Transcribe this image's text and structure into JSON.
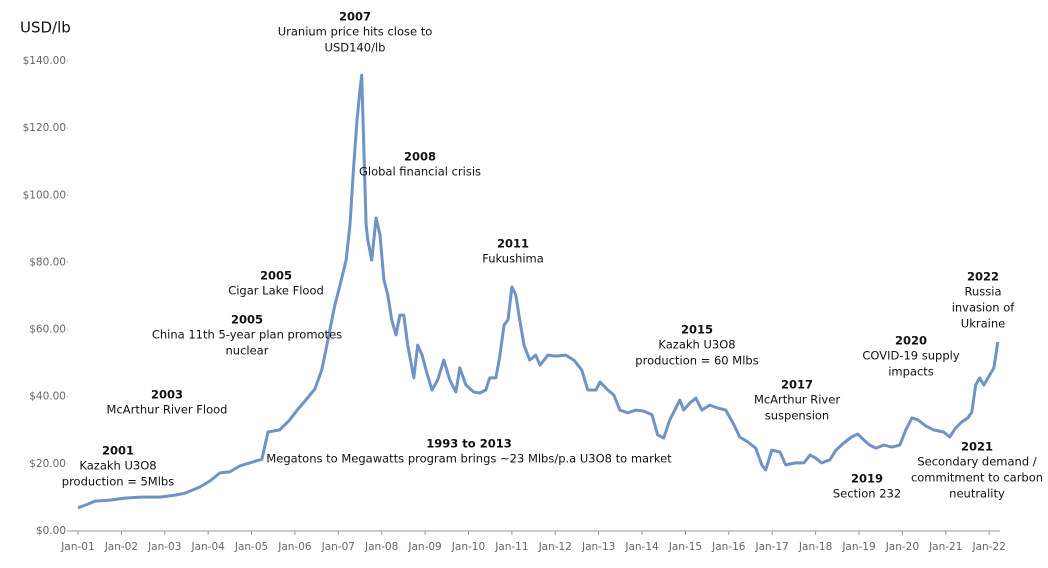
{
  "chart_data": {
    "type": "line",
    "y_label": "USD/lb",
    "color": "#6f93c4",
    "x": [
      2001.0,
      2001.23,
      2001.39,
      2001.74,
      2002.08,
      2002.43,
      2002.89,
      2003.24,
      2003.47,
      2003.81,
      2004.04,
      2004.27,
      2004.5,
      2004.73,
      2004.96,
      2005.24,
      2005.38,
      2005.65,
      2005.88,
      2006.07,
      2006.23,
      2006.46,
      2006.62,
      2006.76,
      2006.92,
      2007.04,
      2007.18,
      2007.27,
      2007.34,
      2007.43,
      2007.5,
      2007.54,
      2007.64,
      2007.68,
      2007.77,
      2007.87,
      2007.96,
      2008.05,
      2008.14,
      2008.23,
      2008.33,
      2008.42,
      2008.51,
      2008.6,
      2008.74,
      2008.83,
      2008.93,
      2009.02,
      2009.16,
      2009.29,
      2009.43,
      2009.57,
      2009.71,
      2009.8,
      2009.94,
      2010.12,
      2010.26,
      2010.4,
      2010.49,
      2010.63,
      2010.72,
      2010.82,
      2010.91,
      2011.0,
      2011.09,
      2011.18,
      2011.28,
      2011.41,
      2011.55,
      2011.65,
      2011.83,
      2012.01,
      2012.24,
      2012.43,
      2012.61,
      2012.75,
      2012.94,
      2013.03,
      2013.21,
      2013.35,
      2013.49,
      2013.67,
      2013.86,
      2014.04,
      2014.23,
      2014.36,
      2014.5,
      2014.64,
      2014.78,
      2014.87,
      2014.96,
      2015.1,
      2015.24,
      2015.38,
      2015.56,
      2015.75,
      2015.93,
      2016.12,
      2016.25,
      2016.44,
      2016.62,
      2016.76,
      2016.85,
      2016.99,
      2017.18,
      2017.31,
      2017.54,
      2017.73,
      2017.87,
      2018.0,
      2018.14,
      2018.33,
      2018.47,
      2018.65,
      2018.83,
      2018.97,
      2019.11,
      2019.25,
      2019.39,
      2019.57,
      2019.76,
      2019.94,
      2020.08,
      2020.22,
      2020.36,
      2020.54,
      2020.72,
      2020.95,
      2021.09,
      2021.23,
      2021.37,
      2021.51,
      2021.6,
      2021.69,
      2021.78,
      2021.88,
      2021.97,
      2022.11,
      2022.2
    ],
    "values": [
      6.9,
      8.0,
      8.9,
      9.2,
      9.8,
      10.1,
      10.1,
      10.7,
      11.3,
      13.1,
      14.9,
      17.3,
      17.6,
      19.4,
      20.3,
      21.4,
      29.5,
      30.1,
      33.1,
      36.3,
      38.7,
      42.3,
      48.0,
      56.9,
      67.3,
      73.3,
      80.7,
      91.2,
      106.1,
      122.4,
      131.4,
      135.8,
      91.2,
      86.7,
      80.7,
      93.2,
      88.2,
      74.8,
      70.3,
      62.9,
      58.4,
      64.3,
      64.3,
      55.4,
      45.6,
      55.4,
      52.4,
      48.0,
      42.0,
      45.0,
      50.9,
      45.0,
      41.4,
      48.6,
      43.5,
      41.4,
      41.1,
      42.0,
      45.6,
      45.6,
      51.8,
      61.4,
      62.9,
      72.7,
      70.3,
      62.9,
      55.4,
      50.9,
      52.4,
      49.4,
      52.4,
      52.1,
      52.4,
      50.9,
      48.0,
      42.0,
      42.0,
      44.4,
      42.0,
      40.5,
      36.0,
      35.2,
      36.0,
      35.7,
      34.6,
      28.6,
      27.7,
      33.1,
      36.7,
      39.0,
      36.0,
      38.1,
      39.6,
      36.0,
      37.5,
      36.6,
      36.0,
      31.6,
      28.0,
      26.5,
      24.7,
      19.7,
      18.2,
      24.1,
      23.5,
      19.7,
      20.3,
      20.3,
      22.6,
      21.7,
      20.3,
      21.2,
      24.1,
      26.2,
      28.0,
      28.9,
      27.1,
      25.6,
      24.7,
      25.6,
      25.0,
      25.6,
      30.1,
      33.7,
      33.1,
      31.3,
      30.1,
      29.5,
      28.0,
      30.7,
      32.5,
      33.7,
      35.4,
      43.5,
      45.6,
      43.5,
      45.6,
      48.6,
      56.3
    ],
    "xlim": [
      2000.77,
      2022.25
    ],
    "xticks": [
      {
        "value": 2001,
        "label": "Jan-01"
      },
      {
        "value": 2002,
        "label": "Jan-02"
      },
      {
        "value": 2003,
        "label": "Jan-03"
      },
      {
        "value": 2004,
        "label": "Jan-04"
      },
      {
        "value": 2005,
        "label": "Jan-05"
      },
      {
        "value": 2006,
        "label": "Jan-06"
      },
      {
        "value": 2007,
        "label": "Jan-07"
      },
      {
        "value": 2008,
        "label": "Jan-08"
      },
      {
        "value": 2009,
        "label": "Jan-09"
      },
      {
        "value": 2010,
        "label": "Jan-10"
      },
      {
        "value": 2011,
        "label": "Jan-11"
      },
      {
        "value": 2012,
        "label": "Jan-12"
      },
      {
        "value": 2013,
        "label": "Jan-13"
      },
      {
        "value": 2014,
        "label": "Jan-14"
      },
      {
        "value": 2015,
        "label": "Jan-15"
      },
      {
        "value": 2016,
        "label": "Jan-16"
      },
      {
        "value": 2017,
        "label": "Jan-17"
      },
      {
        "value": 2018,
        "label": "Jan-18"
      },
      {
        "value": 2019,
        "label": "Jan-19"
      },
      {
        "value": 2020,
        "label": "Jan-20"
      },
      {
        "value": 2021,
        "label": "Jan-21"
      },
      {
        "value": 2022,
        "label": "Jan-22"
      }
    ],
    "ylim": [
      0,
      140
    ],
    "yticks": [
      {
        "value": 0,
        "label": "$0.00"
      },
      {
        "value": 20,
        "label": "$20.00"
      },
      {
        "value": 40,
        "label": "$40.00"
      },
      {
        "value": 60,
        "label": "$60.00"
      },
      {
        "value": 80,
        "label": "$80.00"
      },
      {
        "value": 100,
        "label": "$100.00"
      },
      {
        "value": 120,
        "label": "$120.00"
      },
      {
        "value": 140,
        "label": "$140.00"
      }
    ],
    "annotations": [
      {
        "heading": "2007",
        "lines": [
          "Uranium price hits close to",
          "USD140/lb"
        ]
      },
      {
        "heading": "2008",
        "lines": [
          "Global financial crisis"
        ]
      },
      {
        "heading": "2011",
        "lines": [
          "Fukushima"
        ]
      },
      {
        "heading": "2005",
        "lines": [
          "Cigar Lake Flood"
        ]
      },
      {
        "heading": "2005",
        "lines": [
          "China 11th 5-year plan promotes",
          "nuclear"
        ]
      },
      {
        "heading": "2003",
        "lines": [
          "McArthur River Flood"
        ]
      },
      {
        "heading": "2001",
        "lines": [
          "Kazakh U3O8",
          "production = 5Mlbs"
        ]
      },
      {
        "heading": "1993 to 2013",
        "lines": [
          "Megatons to Megawatts program brings ~23 Mlbs/p.a U3O8 to market"
        ]
      },
      {
        "heading": "2015",
        "lines": [
          "Kazakh U3O8",
          "production = 60 Mlbs"
        ]
      },
      {
        "heading": "2017",
        "lines": [
          "McArthur River",
          "suspension"
        ]
      },
      {
        "heading": "2019",
        "lines": [
          "Section 232"
        ]
      },
      {
        "heading": "2020",
        "lines": [
          "COVID-19 supply",
          "impacts"
        ]
      },
      {
        "heading": "2021",
        "lines": [
          "Secondary demand /",
          "commitment to carbon",
          "neutrality"
        ]
      },
      {
        "heading": "2022",
        "lines": [
          "Russia",
          "invasion of",
          "Ukraine"
        ]
      }
    ]
  }
}
